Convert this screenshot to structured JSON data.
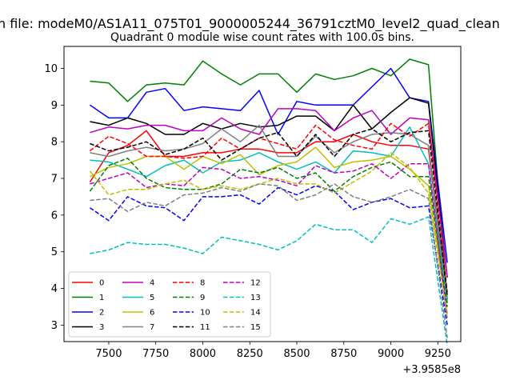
{
  "chart_data": {
    "type": "line",
    "suptitle": "n file: modeM0/AS1A11_075T01_9000005244_36791cztM0_level2_quad_clean",
    "title": "Quadrant 0 module wise count rates with 100.0s bins.",
    "xlabel": "",
    "ylabel": "",
    "x_offset_label": "+3.9585e8",
    "xlim": [
      7262,
      9372
    ],
    "ylim": [
      2.55,
      10.6
    ],
    "x_ticks": [
      7500,
      7750,
      8000,
      8250,
      8500,
      8750,
      9000,
      9250
    ],
    "y_ticks": [
      3,
      4,
      5,
      6,
      7,
      8,
      9,
      10
    ],
    "grid": false,
    "legend_position": "lower-left",
    "x": [
      7400,
      7500,
      7600,
      7700,
      7800,
      7900,
      8000,
      8100,
      8200,
      8300,
      8400,
      8500,
      8600,
      8700,
      8800,
      8900,
      9000,
      9100,
      9200,
      9300
    ],
    "series": [
      {
        "name": "0",
        "color": "#ff0000",
        "dash": "solid",
        "values": [
          6.9,
          7.7,
          7.9,
          8.3,
          7.6,
          7.6,
          7.7,
          7.7,
          7.8,
          7.8,
          7.7,
          7.7,
          8.0,
          8.0,
          8.2,
          8.0,
          7.9,
          7.9,
          7.8,
          3.7
        ]
      },
      {
        "name": "1",
        "color": "#008000",
        "dash": "solid",
        "values": [
          9.65,
          9.6,
          9.1,
          9.55,
          9.6,
          9.55,
          10.2,
          9.85,
          9.55,
          9.85,
          9.85,
          9.35,
          9.85,
          9.7,
          9.8,
          10.0,
          9.8,
          10.25,
          10.1,
          3.6
        ]
      },
      {
        "name": "2",
        "color": "#0000ff",
        "dash": "solid",
        "values": [
          9.0,
          8.65,
          8.65,
          9.35,
          9.45,
          8.85,
          8.95,
          8.9,
          8.85,
          9.4,
          8.2,
          9.1,
          9.0,
          9.0,
          9.0,
          9.5,
          10.0,
          9.2,
          9.1,
          4.7
        ]
      },
      {
        "name": "3",
        "color": "#000000",
        "dash": "solid",
        "values": [
          8.55,
          8.45,
          8.65,
          8.5,
          8.2,
          8.2,
          8.5,
          8.35,
          8.5,
          8.4,
          8.45,
          8.7,
          8.7,
          8.3,
          9.0,
          8.35,
          8.8,
          9.2,
          9.05,
          4.3
        ]
      },
      {
        "name": "4",
        "color": "#bf00bf",
        "dash": "solid",
        "values": [
          8.25,
          8.4,
          8.35,
          8.45,
          8.45,
          8.3,
          8.3,
          8.65,
          8.35,
          8.2,
          8.9,
          8.9,
          8.85,
          8.3,
          8.65,
          8.85,
          8.2,
          8.65,
          8.6,
          4.3
        ]
      },
      {
        "name": "5",
        "color": "#00bfbf",
        "dash": "solid",
        "values": [
          7.5,
          7.45,
          7.25,
          7.05,
          7.35,
          7.5,
          7.15,
          7.45,
          7.5,
          7.7,
          7.45,
          7.25,
          7.45,
          7.15,
          7.75,
          7.7,
          7.6,
          8.4,
          7.4,
          3.6
        ]
      },
      {
        "name": "6",
        "color": "#bfbf00",
        "dash": "solid",
        "values": [
          7.05,
          7.3,
          7.4,
          7.6,
          7.6,
          7.25,
          7.6,
          7.4,
          7.65,
          7.1,
          7.35,
          7.45,
          7.85,
          7.3,
          7.45,
          7.5,
          7.6,
          7.25,
          6.8,
          3.3
        ]
      },
      {
        "name": "7",
        "color": "#808080",
        "dash": "solid",
        "values": [
          7.7,
          7.6,
          7.75,
          7.85,
          7.75,
          7.8,
          7.95,
          8.35,
          8.0,
          8.45,
          7.6,
          7.6,
          8.15,
          7.7,
          8.0,
          8.2,
          8.25,
          8.2,
          7.9,
          3.8
        ]
      },
      {
        "name": "8",
        "color": "#ff0000",
        "dash": "dashed",
        "values": [
          7.75,
          8.15,
          7.95,
          7.6,
          7.6,
          7.55,
          7.6,
          8.1,
          7.8,
          8.1,
          7.95,
          7.8,
          8.45,
          8.05,
          7.9,
          7.8,
          8.5,
          8.15,
          8.5,
          3.9
        ]
      },
      {
        "name": "9",
        "color": "#008000",
        "dash": "dashed",
        "values": [
          6.65,
          7.35,
          7.55,
          7.0,
          6.75,
          6.7,
          6.7,
          6.85,
          7.25,
          7.15,
          7.3,
          7.0,
          7.15,
          6.65,
          7.05,
          7.3,
          7.45,
          7.05,
          7.05,
          3.5
        ]
      },
      {
        "name": "10",
        "color": "#0000ff",
        "dash": "dashed",
        "values": [
          6.2,
          5.85,
          6.5,
          6.25,
          6.2,
          5.85,
          6.5,
          6.5,
          6.55,
          6.3,
          6.75,
          6.55,
          6.8,
          6.65,
          6.15,
          6.35,
          6.45,
          6.2,
          6.25,
          3.0
        ]
      },
      {
        "name": "11",
        "color": "#000000",
        "dash": "dashed",
        "values": [
          7.95,
          7.75,
          7.85,
          8.0,
          7.65,
          7.8,
          8.1,
          7.5,
          7.8,
          8.1,
          8.25,
          7.6,
          8.2,
          7.6,
          8.2,
          8.35,
          8.0,
          8.25,
          8.3,
          3.8
        ]
      },
      {
        "name": "12",
        "color": "#bf00bf",
        "dash": "dashed",
        "values": [
          6.85,
          7.0,
          7.15,
          6.75,
          6.85,
          6.8,
          7.3,
          7.25,
          7.0,
          7.05,
          6.95,
          6.8,
          7.35,
          7.15,
          7.2,
          7.4,
          7.0,
          7.4,
          7.4,
          3.2
        ]
      },
      {
        "name": "13",
        "color": "#00bfbf",
        "dash": "dashed",
        "values": [
          4.95,
          5.05,
          5.25,
          5.2,
          5.2,
          5.1,
          4.95,
          5.4,
          5.3,
          5.2,
          5.05,
          5.3,
          5.75,
          5.6,
          5.6,
          5.25,
          5.9,
          5.75,
          5.95,
          2.45
        ]
      },
      {
        "name": "14",
        "color": "#bfbf00",
        "dash": "dashed",
        "values": [
          7.2,
          6.55,
          6.7,
          6.7,
          6.85,
          6.95,
          6.7,
          6.8,
          6.7,
          6.85,
          7.0,
          6.85,
          6.85,
          6.6,
          6.9,
          7.2,
          7.7,
          7.3,
          6.6,
          3.2
        ]
      },
      {
        "name": "15",
        "color": "#808080",
        "dash": "dashed",
        "values": [
          6.4,
          6.45,
          6.1,
          6.35,
          6.25,
          6.55,
          6.6,
          6.75,
          6.65,
          6.85,
          6.8,
          6.4,
          6.55,
          6.85,
          6.5,
          6.35,
          6.5,
          6.7,
          6.45,
          2.65
        ]
      }
    ]
  }
}
